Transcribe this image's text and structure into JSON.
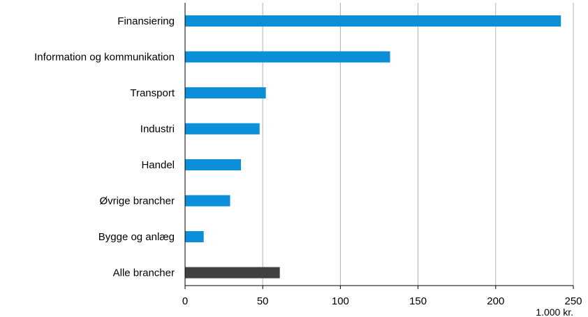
{
  "chart_data": {
    "type": "bar",
    "orientation": "horizontal",
    "categories": [
      "Finansiering",
      "Information og kommunikation",
      "Transport",
      "Industri",
      "Handel",
      "Øvrige brancher",
      "Bygge og anlæg",
      "Alle brancher"
    ],
    "values": [
      242,
      132,
      52,
      48,
      36,
      29,
      12,
      61
    ],
    "bar_colors": [
      "#0a8fd8",
      "#0a8fd8",
      "#0a8fd8",
      "#0a8fd8",
      "#0a8fd8",
      "#0a8fd8",
      "#0a8fd8",
      "#404040"
    ],
    "xlim": [
      0,
      250
    ],
    "xticks": [
      0,
      50,
      100,
      150,
      200,
      250
    ],
    "xtick_labels": [
      "0",
      "50",
      "100",
      "150",
      "200",
      "250"
    ],
    "unit_label": "1.000 kr.",
    "grid": "vertical"
  }
}
